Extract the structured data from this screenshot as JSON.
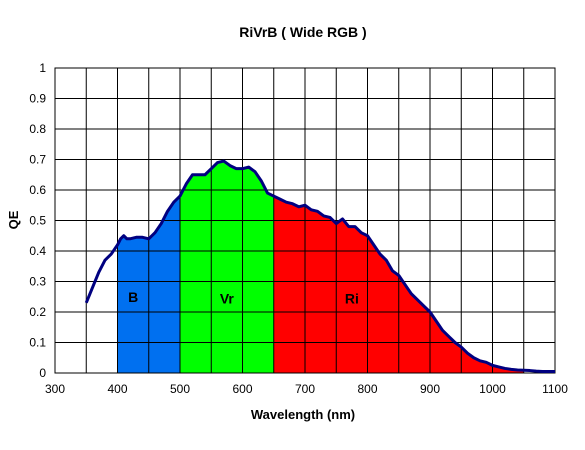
{
  "chart_data": {
    "type": "area",
    "title": "RiVrB ( Wide RGB )",
    "xlabel": "Wavelength (nm)",
    "ylabel": "QE",
    "xlim": [
      300,
      1100
    ],
    "ylim": [
      0,
      1
    ],
    "x_ticks": [
      "300",
      "400",
      "500",
      "600",
      "700",
      "800",
      "900",
      "1000",
      "1100"
    ],
    "y_ticks": [
      "0",
      "0.1",
      "0.2",
      "0.3",
      "0.4",
      "0.5",
      "0.6",
      "0.7",
      "0.8",
      "0.9",
      "1"
    ],
    "x_grid_step": 50,
    "y_grid_step": 0.1,
    "grid": true,
    "legend": "none",
    "curve": {
      "color": "#000080",
      "x": [
        350,
        360,
        370,
        380,
        390,
        400,
        405,
        410,
        415,
        420,
        430,
        440,
        450,
        460,
        470,
        480,
        490,
        500,
        510,
        520,
        530,
        540,
        550,
        560,
        570,
        580,
        590,
        600,
        610,
        620,
        630,
        640,
        650,
        660,
        670,
        680,
        690,
        700,
        710,
        720,
        730,
        740,
        750,
        760,
        770,
        780,
        790,
        800,
        810,
        820,
        830,
        840,
        850,
        860,
        870,
        880,
        890,
        900,
        910,
        920,
        930,
        940,
        950,
        960,
        970,
        980,
        990,
        1000,
        1010,
        1020,
        1030,
        1040,
        1050,
        1060,
        1070,
        1080,
        1090,
        1100
      ],
      "y": [
        0.23,
        0.28,
        0.33,
        0.37,
        0.39,
        0.42,
        0.44,
        0.45,
        0.44,
        0.44,
        0.445,
        0.445,
        0.44,
        0.46,
        0.49,
        0.53,
        0.56,
        0.58,
        0.62,
        0.65,
        0.65,
        0.65,
        0.67,
        0.69,
        0.695,
        0.68,
        0.67,
        0.67,
        0.675,
        0.66,
        0.63,
        0.59,
        0.58,
        0.57,
        0.56,
        0.555,
        0.545,
        0.55,
        0.535,
        0.53,
        0.515,
        0.51,
        0.49,
        0.505,
        0.48,
        0.48,
        0.46,
        0.45,
        0.42,
        0.39,
        0.37,
        0.335,
        0.32,
        0.29,
        0.26,
        0.24,
        0.22,
        0.2,
        0.17,
        0.14,
        0.12,
        0.1,
        0.085,
        0.065,
        0.05,
        0.04,
        0.035,
        0.025,
        0.02,
        0.015,
        0.012,
        0.01,
        0.009,
        0.008,
        0.006,
        0.005,
        0.005,
        0.005
      ]
    },
    "bands": [
      {
        "label": "B",
        "from": 400,
        "to": 500,
        "color": "#0070f0",
        "label_x": 425,
        "label_y": 0.25
      },
      {
        "label": "Vr",
        "from": 500,
        "to": 650,
        "color": "#00ff00",
        "label_x": 575,
        "label_y": 0.245
      },
      {
        "label": "Ri",
        "from": 650,
        "to": 1050,
        "color": "#ff0000",
        "label_x": 775,
        "label_y": 0.245
      }
    ]
  }
}
